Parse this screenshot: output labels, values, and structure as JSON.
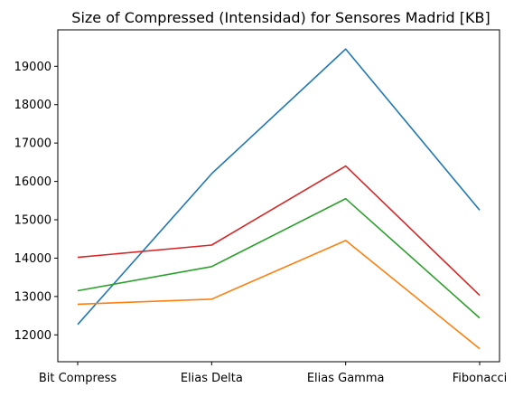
{
  "chart_data": {
    "type": "line",
    "title": "Size of Compressed (Intensidad) for Sensores Madrid [KB]",
    "xlabel": "",
    "ylabel": "",
    "categories": [
      "Bit Compress",
      "Elias Delta",
      "Elias Gamma",
      "Fibonacci"
    ],
    "ylim": [
      11300,
      19950
    ],
    "yticks": [
      12000,
      13000,
      14000,
      15000,
      16000,
      17000,
      18000,
      19000
    ],
    "grid": false,
    "legend": "none",
    "series": [
      {
        "color": "#1f77b4",
        "values": [
          12270,
          16200,
          19450,
          15250
        ]
      },
      {
        "color": "#ff7f0e",
        "values": [
          12800,
          12930,
          14460,
          11640
        ]
      },
      {
        "color": "#2ca02c",
        "values": [
          13150,
          13780,
          15550,
          12440
        ]
      },
      {
        "color": "#d62728",
        "values": [
          14020,
          14340,
          16400,
          13030
        ]
      }
    ]
  }
}
